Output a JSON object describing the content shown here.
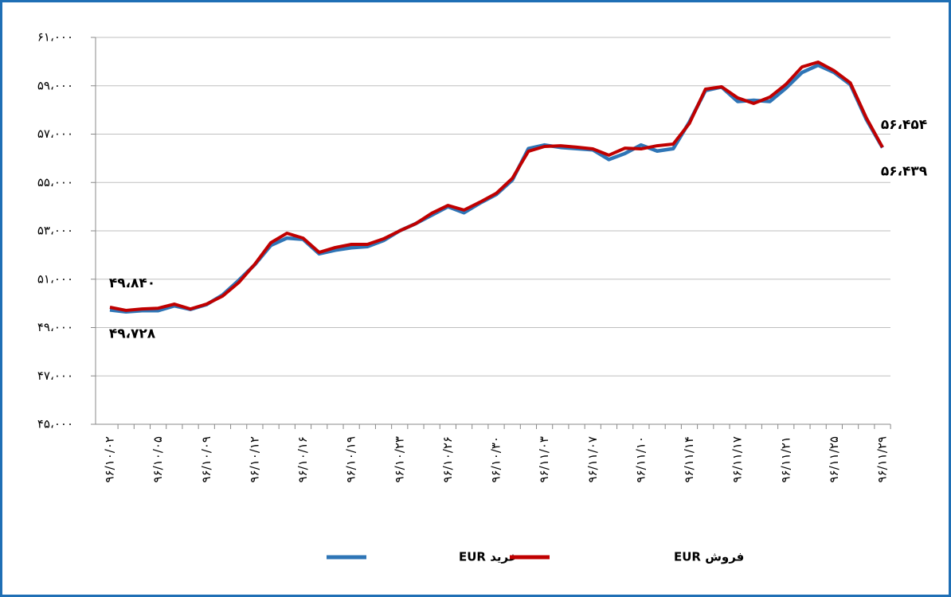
{
  "chart_data": {
    "type": "line",
    "categories": [
      "۹۶/۱۰/۰۲",
      null,
      null,
      "۹۶/۱۰/۰۵",
      null,
      null,
      "۹۶/۱۰/۰۹",
      null,
      null,
      "۹۶/۱۰/۱۲",
      null,
      null,
      "۹۶/۱۰/۱۶",
      null,
      null,
      "۹۶/۱۰/۱۹",
      null,
      null,
      "۹۶/۱۰/۲۳",
      null,
      null,
      "۹۶/۱۰/۲۶",
      null,
      null,
      "۹۶/۱۰/۳۰",
      null,
      null,
      "۹۶/۱۱/۰۳",
      null,
      null,
      "۹۶/۱۱/۰۷",
      null,
      null,
      "۹۶/۱۱/۱۰",
      null,
      null,
      "۹۶/۱۱/۱۴",
      null,
      null,
      "۹۶/۱۱/۱۷",
      null,
      null,
      "۹۶/۱۱/۲۱",
      null,
      null,
      "۹۶/۱۱/۲۵",
      null,
      null,
      "۹۶/۱۱/۲۹"
    ],
    "series": [
      {
        "name": "خرید EUR",
        "color": "#2e75b6",
        "values": [
          49728,
          49650,
          49700,
          49700,
          49900,
          49750,
          49950,
          50350,
          50950,
          51600,
          52400,
          52700,
          52650,
          52050,
          52200,
          52300,
          52350,
          52600,
          53000,
          53300,
          53650,
          54000,
          53750,
          54150,
          54500,
          55100,
          56400,
          56550,
          56450,
          56400,
          56350,
          55950,
          56200,
          56550,
          56300,
          56400,
          57500,
          58800,
          58950,
          58350,
          58400,
          58350,
          58900,
          59550,
          59850,
          59550,
          59050,
          57600,
          56439
        ],
        "value_labels": [
          "۴۹،۷۲۸",
          null,
          null,
          null,
          null,
          null,
          null,
          null,
          null,
          null,
          null,
          null,
          null,
          null,
          null,
          null,
          null,
          null,
          null,
          null,
          null,
          null,
          null,
          null,
          null,
          null,
          null,
          null,
          null,
          null,
          null,
          null,
          null,
          null,
          null,
          null,
          null,
          null,
          null,
          null,
          null,
          null,
          null,
          null,
          null,
          null,
          null,
          null,
          "۵۶،۴۳۹"
        ]
      },
      {
        "name": "فروش EUR",
        "color": "#c00000",
        "values": [
          49840,
          49710,
          49770,
          49800,
          49970,
          49770,
          49970,
          50300,
          50860,
          51620,
          52510,
          52900,
          52700,
          52110,
          52310,
          52440,
          52440,
          52670,
          53000,
          53300,
          53730,
          54050,
          53860,
          54190,
          54550,
          55170,
          56290,
          56490,
          56520,
          56460,
          56390,
          56130,
          56420,
          56390,
          56520,
          56590,
          57440,
          58860,
          58960,
          58500,
          58270,
          58530,
          59060,
          59780,
          59980,
          59620,
          59120,
          57670,
          56454
        ],
        "value_labels": [
          "۴۹،۸۴۰",
          null,
          null,
          null,
          null,
          null,
          null,
          null,
          null,
          null,
          null,
          null,
          null,
          null,
          null,
          null,
          null,
          null,
          null,
          null,
          null,
          null,
          null,
          null,
          null,
          null,
          null,
          null,
          null,
          null,
          null,
          null,
          null,
          null,
          null,
          null,
          null,
          null,
          null,
          null,
          null,
          null,
          null,
          null,
          null,
          null,
          null,
          null,
          "۵۶،۴۵۴"
        ]
      }
    ],
    "ylim": [
      45000,
      61000
    ],
    "yticks": [
      {
        "value": 45000,
        "label": "۴۵،۰۰۰"
      },
      {
        "value": 47000,
        "label": "۴۷،۰۰۰"
      },
      {
        "value": 49000,
        "label": "۴۹،۰۰۰"
      },
      {
        "value": 51000,
        "label": "۵۱،۰۰۰"
      },
      {
        "value": 53000,
        "label": "۵۳،۰۰۰"
      },
      {
        "value": 55000,
        "label": "۵۵،۰۰۰"
      },
      {
        "value": 57000,
        "label": "۵۷،۰۰۰"
      },
      {
        "value": 59000,
        "label": "۵۹،۰۰۰"
      },
      {
        "value": 61000,
        "label": "۶۱،۰۰۰"
      }
    ],
    "grid": true,
    "legend": "bottom"
  }
}
